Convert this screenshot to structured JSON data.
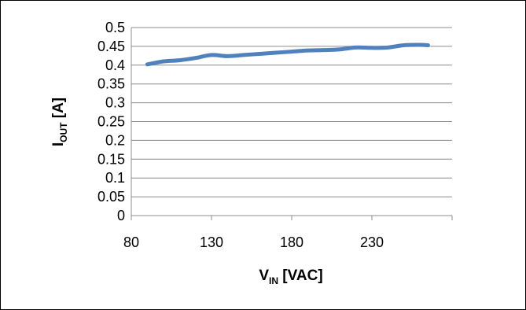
{
  "chart_data": {
    "type": "line",
    "title": "",
    "xlabel": {
      "main": "V",
      "sub": "IN",
      "unit": " [VAC]"
    },
    "ylabel": {
      "main": "I",
      "sub": "OUT",
      "unit": " [A]"
    },
    "xlim": [
      80,
      280
    ],
    "ylim": [
      0,
      0.5
    ],
    "x_ticks": [
      "80",
      "130",
      "180",
      "230"
    ],
    "x_tick_values": [
      80,
      130,
      180,
      230
    ],
    "y_ticks": [
      "0",
      "0.05",
      "0.1",
      "0.15",
      "0.2",
      "0.25",
      "0.3",
      "0.35",
      "0.4",
      "0.45",
      "0.5"
    ],
    "y_tick_values": [
      0,
      0.05,
      0.1,
      0.15,
      0.2,
      0.25,
      0.3,
      0.35,
      0.4,
      0.45,
      0.5
    ],
    "grid": true,
    "legend": "none",
    "series": [
      {
        "color": "#4F81BD",
        "x": [
          90,
          100,
          110,
          120,
          130,
          140,
          150,
          160,
          170,
          180,
          190,
          200,
          210,
          220,
          230,
          240,
          250,
          260,
          265
        ],
        "y": [
          0.402,
          0.41,
          0.413,
          0.419,
          0.427,
          0.424,
          0.427,
          0.43,
          0.433,
          0.436,
          0.439,
          0.44,
          0.442,
          0.447,
          0.446,
          0.447,
          0.453,
          0.454,
          0.453
        ]
      }
    ]
  }
}
